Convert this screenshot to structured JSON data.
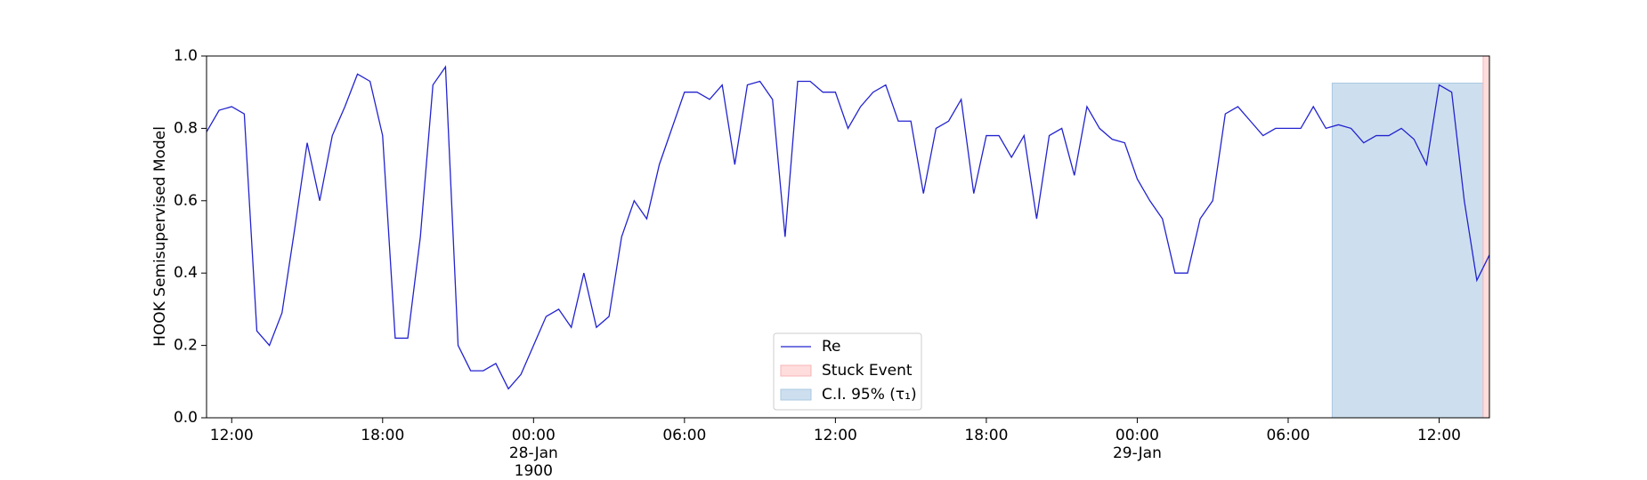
{
  "chart_data": {
    "type": "line",
    "ylabel": "HOOK Semisupervised Model",
    "x": [
      "1900-01-27T11:00",
      "1900-01-27T11:30",
      "1900-01-27T12:00",
      "1900-01-27T12:30",
      "1900-01-27T13:00",
      "1900-01-27T13:30",
      "1900-01-27T14:00",
      "1900-01-27T14:30",
      "1900-01-27T15:00",
      "1900-01-27T15:30",
      "1900-01-27T16:00",
      "1900-01-27T16:30",
      "1900-01-27T17:00",
      "1900-01-27T17:30",
      "1900-01-27T18:00",
      "1900-01-27T18:30",
      "1900-01-27T19:00",
      "1900-01-27T19:30",
      "1900-01-27T20:00",
      "1900-01-27T20:30",
      "1900-01-27T21:00",
      "1900-01-27T21:30",
      "1900-01-27T22:00",
      "1900-01-27T22:30",
      "1900-01-27T23:00",
      "1900-01-27T23:30",
      "1900-01-28T00:00",
      "1900-01-28T00:30",
      "1900-01-28T01:00",
      "1900-01-28T01:30",
      "1900-01-28T02:00",
      "1900-01-28T02:30",
      "1900-01-28T03:00",
      "1900-01-28T03:30",
      "1900-01-28T04:00",
      "1900-01-28T04:30",
      "1900-01-28T05:00",
      "1900-01-28T05:30",
      "1900-01-28T06:00",
      "1900-01-28T06:30",
      "1900-01-28T07:00",
      "1900-01-28T07:30",
      "1900-01-28T08:00",
      "1900-01-28T08:30",
      "1900-01-28T09:00",
      "1900-01-28T09:30",
      "1900-01-28T10:00",
      "1900-01-28T10:30",
      "1900-01-28T11:00",
      "1900-01-28T11:30",
      "1900-01-28T12:00",
      "1900-01-28T12:30",
      "1900-01-28T13:00",
      "1900-01-28T13:30",
      "1900-01-28T14:00",
      "1900-01-28T14:30",
      "1900-01-28T15:00",
      "1900-01-28T15:30",
      "1900-01-28T16:00",
      "1900-01-28T16:30",
      "1900-01-28T17:00",
      "1900-01-28T17:30",
      "1900-01-28T18:00",
      "1900-01-28T18:30",
      "1900-01-28T19:00",
      "1900-01-28T19:30",
      "1900-01-28T20:00",
      "1900-01-28T20:30",
      "1900-01-28T21:00",
      "1900-01-28T21:30",
      "1900-01-28T22:00",
      "1900-01-28T22:30",
      "1900-01-28T23:00",
      "1900-01-28T23:30",
      "1900-01-29T00:00",
      "1900-01-29T00:30",
      "1900-01-29T01:00",
      "1900-01-29T01:30",
      "1900-01-29T02:00",
      "1900-01-29T02:30",
      "1900-01-29T03:00",
      "1900-01-29T03:30",
      "1900-01-29T04:00",
      "1900-01-29T04:30",
      "1900-01-29T05:00",
      "1900-01-29T05:30",
      "1900-01-29T06:00",
      "1900-01-29T06:30",
      "1900-01-29T07:00",
      "1900-01-29T07:30",
      "1900-01-29T08:00",
      "1900-01-29T08:30",
      "1900-01-29T09:00",
      "1900-01-29T09:30",
      "1900-01-29T10:00",
      "1900-01-29T10:30",
      "1900-01-29T11:00",
      "1900-01-29T11:30",
      "1900-01-29T12:00",
      "1900-01-29T12:30",
      "1900-01-29T13:00",
      "1900-01-29T13:30",
      "1900-01-29T14:00"
    ],
    "series": [
      {
        "name": "Re",
        "color": "#2323cf",
        "values": [
          0.79,
          0.85,
          0.86,
          0.84,
          0.24,
          0.2,
          0.29,
          0.52,
          0.76,
          0.6,
          0.78,
          0.86,
          0.95,
          0.93,
          0.78,
          0.22,
          0.22,
          0.5,
          0.92,
          0.97,
          0.2,
          0.13,
          0.13,
          0.15,
          0.08,
          0.12,
          0.2,
          0.28,
          0.3,
          0.25,
          0.4,
          0.25,
          0.28,
          0.5,
          0.6,
          0.55,
          0.7,
          0.8,
          0.9,
          0.9,
          0.88,
          0.92,
          0.7,
          0.92,
          0.93,
          0.88,
          0.5,
          0.93,
          0.93,
          0.9,
          0.9,
          0.8,
          0.86,
          0.9,
          0.92,
          0.82,
          0.82,
          0.62,
          0.8,
          0.82,
          0.88,
          0.62,
          0.78,
          0.78,
          0.72,
          0.78,
          0.55,
          0.78,
          0.8,
          0.67,
          0.86,
          0.8,
          0.77,
          0.76,
          0.66,
          0.6,
          0.55,
          0.4,
          0.4,
          0.55,
          0.6,
          0.84,
          0.86,
          0.82,
          0.78,
          0.8,
          0.8,
          0.8,
          0.86,
          0.8,
          0.81,
          0.8,
          0.76,
          0.78,
          0.78,
          0.8,
          0.77,
          0.7,
          0.92,
          0.9,
          0.6,
          0.38,
          0.45
        ]
      }
    ],
    "spans": [
      {
        "name": "Stuck Event",
        "color": "#ffdddd",
        "x": [
          "1900-01-29T13:45",
          "1900-01-29T14:00"
        ]
      },
      {
        "name": "C.I. 95% (τ₁)",
        "color": "#cddfee",
        "x": [
          "1900-01-29T07:45",
          "1900-01-29T13:45"
        ],
        "y": [
          0,
          0.925
        ]
      }
    ],
    "xlim": [
      "1900-01-27T11:00",
      "1900-01-29T14:00"
    ],
    "xticks": [
      {
        "value": "1900-01-27T12:00",
        "label": "12:00"
      },
      {
        "value": "1900-01-27T18:00",
        "label": "18:00"
      },
      {
        "value": "1900-01-28T00:00",
        "label": "00:00\n28-Jan\n1900"
      },
      {
        "value": "1900-01-28T06:00",
        "label": "06:00"
      },
      {
        "value": "1900-01-28T12:00",
        "label": "12:00"
      },
      {
        "value": "1900-01-28T18:00",
        "label": "18:00"
      },
      {
        "value": "1900-01-29T00:00",
        "label": "00:00\n29-Jan"
      },
      {
        "value": "1900-01-29T06:00",
        "label": "06:00"
      },
      {
        "value": "1900-01-29T12:00",
        "label": "12:00"
      }
    ],
    "ylim": [
      0,
      1
    ],
    "yticks": [
      {
        "value": 0,
        "label": "0.0"
      },
      0.2,
      0.4,
      0.6,
      0.8,
      {
        "value": 1,
        "label": "1.0"
      }
    ],
    "legend": "lower center"
  }
}
